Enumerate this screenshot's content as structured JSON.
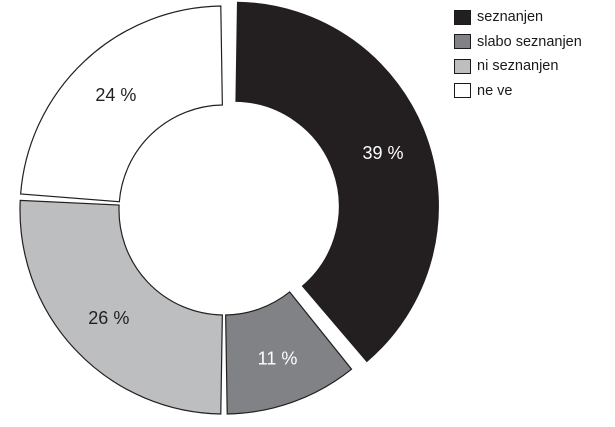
{
  "chart_data": {
    "type": "pie",
    "variant": "donut",
    "categories": [
      "seznanjen",
      "slabo seznanjen",
      "ni seznanjen",
      "ne ve"
    ],
    "values": [
      39,
      11,
      26,
      24
    ],
    "labels": [
      "39 %",
      "11 %",
      "26 %",
      "24 %"
    ],
    "colors": [
      "#231f20",
      "#808285",
      "#bcbec0",
      "#ffffff"
    ],
    "label_colors": [
      "#ffffff",
      "#ffffff",
      "#231f20",
      "#231f20"
    ],
    "exploded": [
      true,
      false,
      false,
      false
    ],
    "legend_position": "top-right",
    "title": ""
  }
}
